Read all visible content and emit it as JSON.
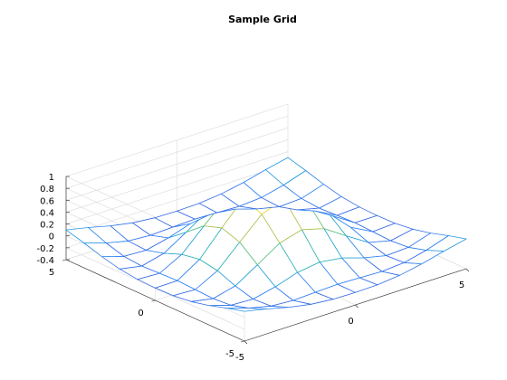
{
  "chart_data": {
    "type": "mesh3d",
    "title": "Sample Grid",
    "xlabel": "",
    "ylabel": "",
    "zlabel": "",
    "x": [
      -5,
      -4,
      -3,
      -2,
      -1,
      0,
      1,
      2,
      3,
      4,
      5
    ],
    "y": [
      -5,
      -4,
      -3,
      -2,
      -1,
      0,
      1,
      2,
      3,
      4,
      5
    ],
    "z_function": "sin(r)/r, r = sqrt(x^2 + y^2)",
    "xlim": [
      -5,
      5
    ],
    "ylim": [
      -5,
      5
    ],
    "zlim": [
      -0.4,
      1
    ],
    "x_ticks": [
      "-5",
      "0",
      "5"
    ],
    "y_ticks": [
      "-5",
      "0",
      "5"
    ],
    "z_ticks": [
      "-0.4",
      "-0.2",
      "0",
      "0.2",
      "0.4",
      "0.6",
      "0.8",
      "1"
    ],
    "grid": true,
    "colormap": [
      "#3e26a8",
      "#2e7ef8",
      "#1ab2c5",
      "#6cc45e",
      "#f3c03a",
      "#f9fb0e"
    ]
  }
}
